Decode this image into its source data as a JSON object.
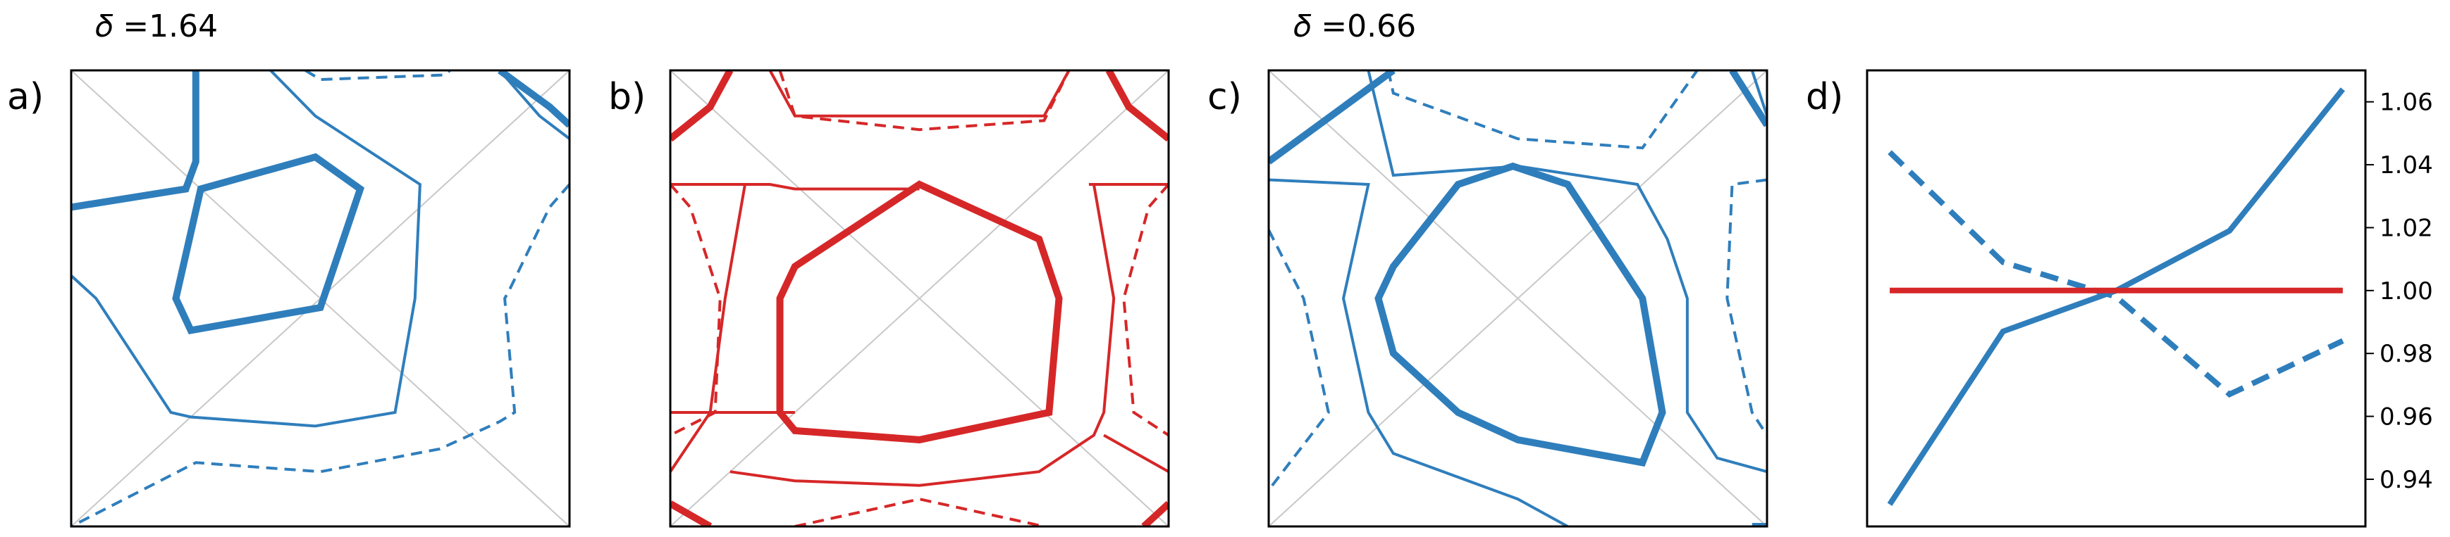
{
  "colors": {
    "blue": "#2f7ebc",
    "red": "#d62728",
    "diagonal": "#c8c8c8",
    "frame": "#000000"
  },
  "headers": [
    "𝛿 =1.64",
    "𝛿 =0.66"
  ],
  "panel_labels": [
    "a)",
    "b)",
    "c)",
    "d)"
  ],
  "chart_data": [
    {
      "type": "contour",
      "panel": "a)",
      "header": "𝛿 =1.64",
      "color": "#2f7ebc",
      "grid": false,
      "diagonals": true,
      "xlim": [
        0,
        1
      ],
      "ylim": [
        0,
        1
      ],
      "contours": [
        {
          "style": "thick",
          "points": [
            [
              0.25,
              1.0
            ],
            [
              0.25,
              0.8
            ],
            [
              0.23,
              0.74
            ],
            [
              0.0,
              0.7
            ]
          ]
        },
        {
          "style": "thick",
          "closed": true,
          "points": [
            [
              0.26,
              0.74
            ],
            [
              0.49,
              0.81
            ],
            [
              0.58,
              0.74
            ],
            [
              0.5,
              0.48
            ],
            [
              0.24,
              0.43
            ],
            [
              0.21,
              0.5
            ]
          ]
        },
        {
          "style": "thin",
          "points": [
            [
              0.4,
              1.0
            ],
            [
              0.49,
              0.9
            ],
            [
              0.7,
              0.75
            ],
            [
              0.69,
              0.5
            ],
            [
              0.65,
              0.25
            ],
            [
              0.49,
              0.22
            ],
            [
              0.24,
              0.24
            ],
            [
              0.2,
              0.25
            ],
            [
              0.05,
              0.5
            ],
            [
              0.0,
              0.55
            ]
          ]
        },
        {
          "style": "thin",
          "points": [
            [
              0.86,
              1.0
            ],
            [
              0.94,
              0.9
            ],
            [
              1.0,
              0.85
            ]
          ]
        },
        {
          "style": "dashed",
          "points": [
            [
              0.47,
              1.0
            ],
            [
              0.5,
              0.98
            ],
            [
              0.75,
              0.99
            ],
            [
              0.76,
              1.0
            ]
          ]
        },
        {
          "style": "dashed",
          "points": [
            [
              1.0,
              0.75
            ],
            [
              0.96,
              0.7
            ],
            [
              0.88,
              0.52
            ],
            [
              0.87,
              0.5
            ],
            [
              0.89,
              0.25
            ],
            [
              0.86,
              0.23
            ],
            [
              0.74,
              0.17
            ],
            [
              0.5,
              0.12
            ],
            [
              0.25,
              0.14
            ],
            [
              0.0,
              0.0
            ]
          ]
        },
        {
          "style": "thick",
          "points": [
            [
              0.86,
              1.0
            ],
            [
              0.96,
              0.92
            ],
            [
              1.0,
              0.88
            ]
          ]
        }
      ]
    },
    {
      "type": "contour",
      "panel": "b)",
      "color": "#d62728",
      "grid": false,
      "diagonals": true,
      "xlim": [
        0,
        1
      ],
      "ylim": [
        0,
        1
      ],
      "contours": [
        {
          "style": "thick",
          "closed": true,
          "points": [
            [
              0.5,
              0.75
            ],
            [
              0.74,
              0.63
            ],
            [
              0.78,
              0.5
            ],
            [
              0.76,
              0.25
            ],
            [
              0.5,
              0.19
            ],
            [
              0.25,
              0.21
            ],
            [
              0.22,
              0.25
            ],
            [
              0.22,
              0.5
            ],
            [
              0.25,
              0.57
            ]
          ]
        },
        {
          "style": "thin",
          "points": [
            [
              0.0,
              0.75
            ],
            [
              0.2,
              0.75
            ],
            [
              0.25,
              0.74
            ],
            [
              0.5,
              0.74
            ]
          ]
        },
        {
          "style": "thin",
          "points": [
            [
              0.2,
              1.0
            ],
            [
              0.25,
              0.9
            ],
            [
              0.5,
              0.9
            ],
            [
              0.75,
              0.9
            ],
            [
              0.8,
              1.0
            ]
          ]
        },
        {
          "style": "thin",
          "points": [
            [
              0.0,
              0.25
            ],
            [
              0.25,
              0.25
            ]
          ]
        },
        {
          "style": "thin",
          "points": [
            [
              0.15,
              0.75
            ],
            [
              0.11,
              0.5
            ],
            [
              0.08,
              0.25
            ],
            [
              0.0,
              0.12
            ]
          ]
        },
        {
          "style": "thin",
          "points": [
            [
              0.85,
              0.75
            ],
            [
              0.89,
              0.5
            ],
            [
              0.87,
              0.25
            ],
            [
              0.85,
              0.2
            ],
            [
              0.74,
              0.12
            ],
            [
              0.5,
              0.09
            ],
            [
              0.25,
              0.1
            ],
            [
              0.12,
              0.12
            ]
          ]
        },
        {
          "style": "thin",
          "points": [
            [
              1.0,
              0.75
            ],
            [
              0.84,
              0.75
            ]
          ]
        },
        {
          "style": "thin",
          "points": [
            [
              1.0,
              0.12
            ],
            [
              0.87,
              0.2
            ]
          ]
        },
        {
          "style": "dashed",
          "points": [
            [
              0.22,
              1.0
            ],
            [
              0.25,
              0.9
            ],
            [
              0.5,
              0.87
            ],
            [
              0.75,
              0.89
            ],
            [
              0.8,
              1.0
            ]
          ]
        },
        {
          "style": "dashed",
          "points": [
            [
              0.0,
              0.75
            ],
            [
              0.04,
              0.7
            ],
            [
              0.1,
              0.5
            ],
            [
              0.09,
              0.25
            ],
            [
              0.0,
              0.2
            ]
          ]
        },
        {
          "style": "dashed",
          "points": [
            [
              1.0,
              0.75
            ],
            [
              0.96,
              0.7
            ],
            [
              0.91,
              0.5
            ],
            [
              0.93,
              0.25
            ],
            [
              1.0,
              0.2
            ]
          ]
        },
        {
          "style": "dashed",
          "points": [
            [
              0.25,
              0.0
            ],
            [
              0.5,
              0.06
            ],
            [
              0.75,
              0.0
            ]
          ]
        },
        {
          "style": "thick",
          "points": [
            [
              0.0,
              0.85
            ],
            [
              0.08,
              0.92
            ],
            [
              0.12,
              1.0
            ]
          ]
        },
        {
          "style": "thick",
          "points": [
            [
              1.0,
              0.85
            ],
            [
              0.92,
              0.92
            ],
            [
              0.88,
              1.0
            ]
          ]
        },
        {
          "style": "thick",
          "points": [
            [
              0.0,
              0.05
            ],
            [
              0.08,
              0.0
            ]
          ]
        },
        {
          "style": "thick",
          "points": [
            [
              1.0,
              0.05
            ],
            [
              0.95,
              0.0
            ]
          ]
        }
      ]
    },
    {
      "type": "contour",
      "panel": "c)",
      "header": "𝛿 =0.66",
      "color": "#2f7ebc",
      "grid": false,
      "diagonals": true,
      "xlim": [
        0,
        1
      ],
      "ylim": [
        0,
        1
      ],
      "contours": [
        {
          "style": "thick",
          "closed": true,
          "points": [
            [
              0.38,
              0.75
            ],
            [
              0.49,
              0.79
            ],
            [
              0.6,
              0.75
            ],
            [
              0.75,
              0.5
            ],
            [
              0.79,
              0.25
            ],
            [
              0.75,
              0.14
            ],
            [
              0.5,
              0.19
            ],
            [
              0.38,
              0.25
            ],
            [
              0.25,
              0.38
            ],
            [
              0.22,
              0.5
            ],
            [
              0.25,
              0.57
            ]
          ]
        },
        {
          "style": "thin",
          "points": [
            [
              0.2,
              1.0
            ],
            [
              0.25,
              0.77
            ],
            [
              0.5,
              0.79
            ],
            [
              0.74,
              0.75
            ],
            [
              0.8,
              0.63
            ],
            [
              0.84,
              0.5
            ],
            [
              0.84,
              0.25
            ],
            [
              0.9,
              0.15
            ],
            [
              1.0,
              0.12
            ]
          ]
        },
        {
          "style": "thin",
          "points": [
            [
              0.0,
              0.76
            ],
            [
              0.2,
              0.75
            ],
            [
              0.15,
              0.5
            ],
            [
              0.2,
              0.25
            ],
            [
              0.25,
              0.16
            ],
            [
              0.5,
              0.06
            ],
            [
              0.6,
              0.0
            ]
          ]
        },
        {
          "style": "thin",
          "points": [
            [
              0.97,
              1.0
            ],
            [
              1.0,
              0.9
            ]
          ]
        },
        {
          "style": "dashed",
          "points": [
            [
              0.24,
              1.0
            ],
            [
              0.25,
              0.95
            ],
            [
              0.5,
              0.85
            ],
            [
              0.75,
              0.83
            ],
            [
              0.86,
              1.0
            ]
          ]
        },
        {
          "style": "dashed",
          "points": [
            [
              0.0,
              0.65
            ],
            [
              0.07,
              0.5
            ],
            [
              0.12,
              0.25
            ],
            [
              0.0,
              0.08
            ]
          ]
        },
        {
          "style": "dashed",
          "points": [
            [
              1.0,
              0.76
            ],
            [
              0.93,
              0.75
            ],
            [
              0.92,
              0.5
            ],
            [
              0.97,
              0.25
            ],
            [
              1.0,
              0.2
            ]
          ]
        },
        {
          "style": "thick",
          "points": [
            [
              0.0,
              0.8
            ],
            [
              0.25,
              1.0
            ]
          ]
        },
        {
          "style": "thick",
          "points": [
            [
              0.93,
              1.0
            ],
            [
              1.0,
              0.88
            ]
          ]
        },
        {
          "style": "thick",
          "points": [
            [
              1.0,
              0.0
            ],
            [
              0.97,
              0.0
            ]
          ]
        }
      ]
    },
    {
      "type": "line",
      "panel": "d)",
      "x": [
        0,
        1,
        2,
        3,
        4
      ],
      "xlim": [
        -0.2,
        4.2
      ],
      "ylim": [
        0.925,
        1.07
      ],
      "yticks": [
        0.94,
        0.96,
        0.98,
        1.0,
        1.02,
        1.04,
        1.06
      ],
      "ytick_labels": [
        "0.94",
        "0.96",
        "0.98",
        "1.00",
        "1.02",
        "1.04",
        "1.06"
      ],
      "yaxis_side": "right",
      "grid": false,
      "series": [
        {
          "color": "#2f7ebc",
          "style": "solid",
          "values": [
            0.932,
            0.987,
            1.0,
            1.019,
            1.064
          ]
        },
        {
          "color": "#2f7ebc",
          "style": "dashed",
          "values": [
            1.044,
            1.009,
            0.998,
            0.967,
            0.984
          ]
        },
        {
          "color": "#d62728",
          "style": "solid",
          "values": [
            1.0,
            1.0,
            1.0,
            1.0,
            1.0
          ]
        }
      ]
    }
  ]
}
